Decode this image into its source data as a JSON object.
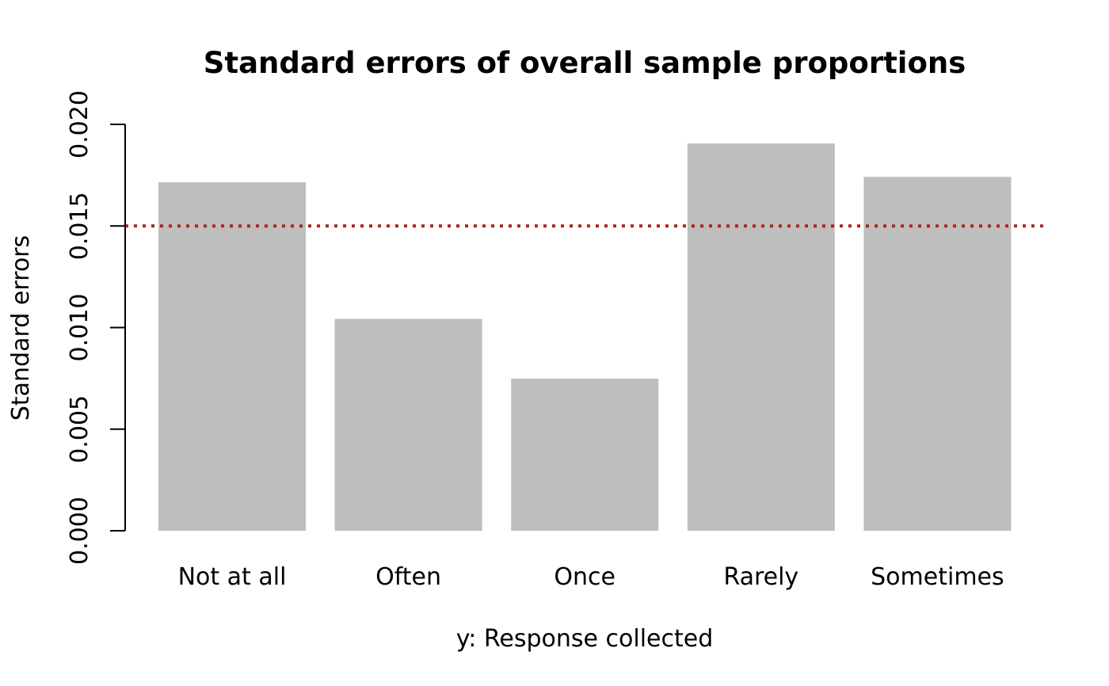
{
  "chart_data": {
    "type": "bar",
    "title": "Standard errors of overall sample proportions",
    "xlabel": "y: Response collected",
    "ylabel": "Standard errors",
    "categories": [
      "Not at all",
      "Often",
      "Once",
      "Rarely",
      "Sometimes"
    ],
    "values": [
      0.01715,
      0.01043,
      0.00749,
      0.01906,
      0.01742
    ],
    "ylim": [
      0,
      0.02
    ],
    "yticks": [
      "0.000",
      "0.005",
      "0.010",
      "0.015",
      "0.020"
    ],
    "reference_line": {
      "value": 0.015,
      "style": "dotted"
    },
    "grid": false,
    "legend": "none",
    "colors": {
      "bar": "#bebebe",
      "reference_line": "#b22222",
      "axis": "#000000"
    }
  }
}
